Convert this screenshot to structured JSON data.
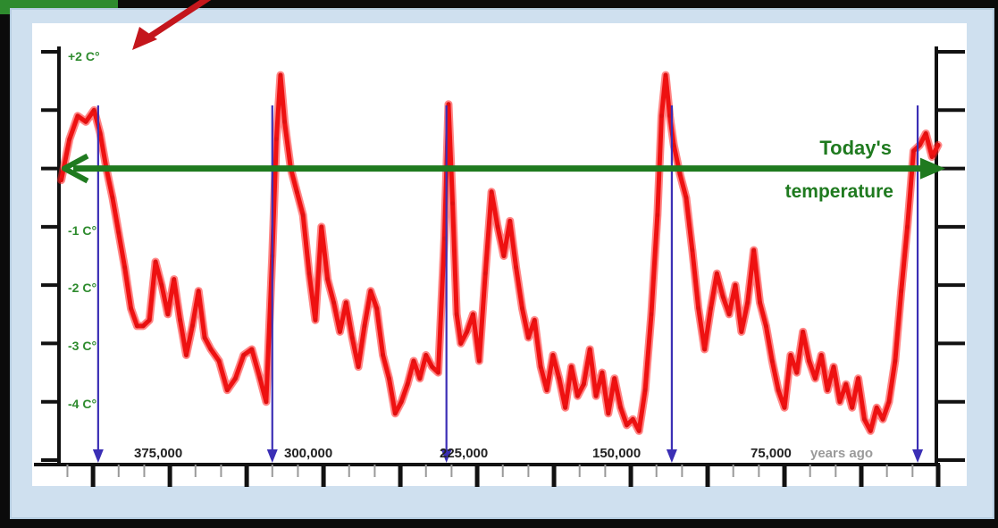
{
  "chart_data": {
    "type": "line",
    "y_axis_ticks": [
      "+2 C°",
      "-1 C°",
      "-2 C°",
      "-3 C°",
      "-4 C°"
    ],
    "x_axis_ticks": [
      "375,000",
      "300,000",
      "225,000",
      "150,000",
      "75,000"
    ],
    "x_axis_suffix": "years ago",
    "x_range": [
      430000,
      0
    ],
    "y_range": [
      -5,
      2
    ],
    "reference_line": {
      "label_line1": "Today's",
      "label_line2": "temperature",
      "y": 0
    },
    "interglacial_markers_years_ago": [
      410000,
      325000,
      240000,
      130000,
      10000
    ],
    "series": [
      {
        "points": [
          [
            428000,
            -0.2
          ],
          [
            424000,
            0.5
          ],
          [
            420000,
            0.9
          ],
          [
            416000,
            0.8
          ],
          [
            412000,
            1.0
          ],
          [
            409000,
            0.6
          ],
          [
            406000,
            0.0
          ],
          [
            403000,
            -0.5
          ],
          [
            400000,
            -1.1
          ],
          [
            397000,
            -1.7
          ],
          [
            394000,
            -2.4
          ],
          [
            391000,
            -2.7
          ],
          [
            388000,
            -2.7
          ],
          [
            385000,
            -2.6
          ],
          [
            382000,
            -1.6
          ],
          [
            379000,
            -2.0
          ],
          [
            376000,
            -2.5
          ],
          [
            373000,
            -1.9
          ],
          [
            370000,
            -2.6
          ],
          [
            367000,
            -3.2
          ],
          [
            364000,
            -2.7
          ],
          [
            361000,
            -2.1
          ],
          [
            358000,
            -2.9
          ],
          [
            355000,
            -3.1
          ],
          [
            351000,
            -3.3
          ],
          [
            347000,
            -3.8
          ],
          [
            343000,
            -3.6
          ],
          [
            339000,
            -3.2
          ],
          [
            335000,
            -3.1
          ],
          [
            331000,
            -3.6
          ],
          [
            328000,
            -4.0
          ],
          [
            325000,
            -1.5
          ],
          [
            323000,
            0.5
          ],
          [
            321000,
            1.6
          ],
          [
            319000,
            0.8
          ],
          [
            316000,
            0.0
          ],
          [
            313000,
            -0.4
          ],
          [
            310000,
            -0.8
          ],
          [
            307000,
            -1.8
          ],
          [
            304000,
            -2.6
          ],
          [
            301000,
            -1.0
          ],
          [
            298000,
            -1.9
          ],
          [
            295000,
            -2.3
          ],
          [
            292000,
            -2.8
          ],
          [
            289000,
            -2.3
          ],
          [
            286000,
            -2.9
          ],
          [
            283000,
            -3.4
          ],
          [
            280000,
            -2.7
          ],
          [
            277000,
            -2.1
          ],
          [
            274000,
            -2.4
          ],
          [
            271000,
            -3.2
          ],
          [
            268000,
            -3.6
          ],
          [
            265000,
            -4.2
          ],
          [
            262000,
            -4.0
          ],
          [
            259000,
            -3.7
          ],
          [
            256000,
            -3.3
          ],
          [
            253000,
            -3.6
          ],
          [
            250000,
            -3.2
          ],
          [
            247000,
            -3.4
          ],
          [
            244000,
            -3.5
          ],
          [
            241000,
            -1.2
          ],
          [
            239000,
            1.1
          ],
          [
            237000,
            -0.6
          ],
          [
            235000,
            -2.5
          ],
          [
            233000,
            -3.0
          ],
          [
            230000,
            -2.8
          ],
          [
            227000,
            -2.5
          ],
          [
            224000,
            -3.3
          ],
          [
            221000,
            -1.8
          ],
          [
            218000,
            -0.4
          ],
          [
            215000,
            -1.0
          ],
          [
            212000,
            -1.5
          ],
          [
            209000,
            -0.9
          ],
          [
            206000,
            -1.7
          ],
          [
            203000,
            -2.4
          ],
          [
            200000,
            -2.9
          ],
          [
            197000,
            -2.6
          ],
          [
            194000,
            -3.4
          ],
          [
            191000,
            -3.8
          ],
          [
            188000,
            -3.2
          ],
          [
            185000,
            -3.6
          ],
          [
            182000,
            -4.1
          ],
          [
            179000,
            -3.4
          ],
          [
            176000,
            -3.9
          ],
          [
            173000,
            -3.7
          ],
          [
            170000,
            -3.1
          ],
          [
            167000,
            -3.9
          ],
          [
            164000,
            -3.5
          ],
          [
            161000,
            -4.2
          ],
          [
            158000,
            -3.6
          ],
          [
            155000,
            -4.1
          ],
          [
            152000,
            -4.4
          ],
          [
            149000,
            -4.3
          ],
          [
            146000,
            -4.5
          ],
          [
            143000,
            -3.8
          ],
          [
            140000,
            -2.5
          ],
          [
            137000,
            -0.8
          ],
          [
            135000,
            0.9
          ],
          [
            133000,
            1.6
          ],
          [
            131000,
            0.9
          ],
          [
            129000,
            0.4
          ],
          [
            126000,
            -0.1
          ],
          [
            123000,
            -0.5
          ],
          [
            120000,
            -1.4
          ],
          [
            117000,
            -2.4
          ],
          [
            114000,
            -3.1
          ],
          [
            111000,
            -2.4
          ],
          [
            108000,
            -1.8
          ],
          [
            105000,
            -2.2
          ],
          [
            102000,
            -2.5
          ],
          [
            99000,
            -2.0
          ],
          [
            96000,
            -2.8
          ],
          [
            93000,
            -2.3
          ],
          [
            90000,
            -1.4
          ],
          [
            87000,
            -2.3
          ],
          [
            84000,
            -2.7
          ],
          [
            81000,
            -3.3
          ],
          [
            78000,
            -3.8
          ],
          [
            75000,
            -4.1
          ],
          [
            72000,
            -3.2
          ],
          [
            69000,
            -3.5
          ],
          [
            66000,
            -2.8
          ],
          [
            63000,
            -3.3
          ],
          [
            60000,
            -3.6
          ],
          [
            57000,
            -3.2
          ],
          [
            54000,
            -3.8
          ],
          [
            51000,
            -3.4
          ],
          [
            48000,
            -4.0
          ],
          [
            45000,
            -3.7
          ],
          [
            42000,
            -4.1
          ],
          [
            39000,
            -3.6
          ],
          [
            36000,
            -4.3
          ],
          [
            33000,
            -4.5
          ],
          [
            30000,
            -4.1
          ],
          [
            27000,
            -4.3
          ],
          [
            24000,
            -4.0
          ],
          [
            21000,
            -3.3
          ],
          [
            18000,
            -2.1
          ],
          [
            15000,
            -1.0
          ],
          [
            12000,
            0.3
          ],
          [
            9000,
            0.4
          ],
          [
            6000,
            0.6
          ],
          [
            3000,
            0.2
          ],
          [
            0,
            0.4
          ]
        ]
      }
    ]
  }
}
